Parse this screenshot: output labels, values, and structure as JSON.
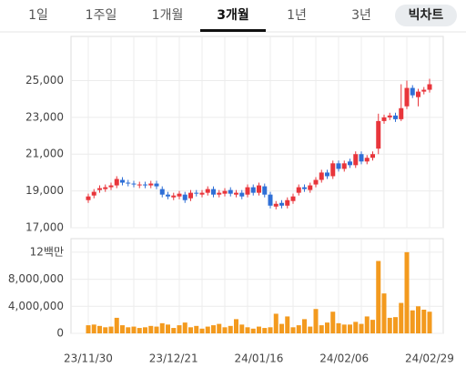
{
  "tabs": [
    "1일",
    "1주일",
    "1개월",
    "3개월",
    "1년",
    "3년"
  ],
  "active_tab": 3,
  "button": "빅차트",
  "chart_data": [
    {
      "type": "candlestick",
      "up_color": "#e8353b",
      "down_color": "#2f6fd6",
      "grid": true,
      "categories": [
        "23/11/30",
        null,
        null,
        null,
        null,
        null,
        null,
        null,
        null,
        null,
        null,
        null,
        null,
        null,
        null,
        "23/12/21",
        null,
        null,
        null,
        null,
        null,
        null,
        null,
        null,
        null,
        null,
        null,
        null,
        null,
        null,
        "24/01/16",
        null,
        null,
        null,
        null,
        null,
        null,
        null,
        null,
        null,
        null,
        null,
        null,
        null,
        null,
        "24/02/06",
        null,
        null,
        null,
        null,
        null,
        null,
        null,
        null,
        null,
        null,
        null,
        null,
        null,
        null,
        "24/02/29"
      ],
      "open": [
        18500,
        18750,
        19050,
        19100,
        19200,
        19300,
        19600,
        19450,
        19400,
        19300,
        19350,
        19300,
        19400,
        19100,
        18800,
        18650,
        18700,
        18800,
        18600,
        18900,
        18800,
        18900,
        19100,
        18800,
        18850,
        19050,
        18800,
        18900,
        18800,
        19200,
        18900,
        19250,
        18800,
        18150,
        18350,
        18200,
        18450,
        18900,
        19200,
        19050,
        19350,
        19600,
        20000,
        19800,
        20500,
        20200,
        20600,
        20400,
        21000,
        20600,
        20800,
        21300,
        22800,
        23000,
        23100,
        22900,
        23600,
        24600,
        24100,
        24400,
        24500
      ],
      "high": [
        18850,
        19100,
        19300,
        19350,
        19450,
        19800,
        19750,
        19600,
        19550,
        19500,
        19500,
        19550,
        19550,
        19250,
        18950,
        18900,
        19000,
        18950,
        19050,
        19050,
        19050,
        19250,
        19250,
        19050,
        19150,
        19200,
        19050,
        19050,
        19350,
        19350,
        19450,
        19400,
        18950,
        18450,
        18500,
        18650,
        18850,
        19350,
        19350,
        19450,
        19750,
        20150,
        20150,
        20650,
        20650,
        20650,
        20750,
        21150,
        21150,
        20950,
        21150,
        23200,
        23150,
        23250,
        23250,
        24800,
        25000,
        24750,
        24550,
        24650,
        25100
      ],
      "low": [
        18350,
        18600,
        18900,
        18950,
        19050,
        19150,
        19300,
        19250,
        19200,
        19150,
        19150,
        19150,
        19100,
        18650,
        18550,
        18500,
        18550,
        18350,
        18450,
        18700,
        18650,
        18750,
        18650,
        18650,
        18700,
        18700,
        18650,
        18550,
        18650,
        18750,
        18750,
        18650,
        18050,
        18000,
        18050,
        18050,
        18300,
        18750,
        18950,
        18900,
        19200,
        19450,
        19650,
        19650,
        20050,
        20050,
        20250,
        20250,
        20450,
        20450,
        20650,
        21000,
        22650,
        22850,
        22750,
        22800,
        23450,
        24050,
        23600,
        24250,
        24350
      ],
      "close": [
        18700,
        18950,
        19150,
        19200,
        19300,
        19650,
        19450,
        19400,
        19350,
        19350,
        19300,
        19400,
        19250,
        18800,
        18700,
        18750,
        18850,
        18500,
        18900,
        18850,
        18900,
        19100,
        18800,
        18900,
        19000,
        18850,
        18900,
        18700,
        19200,
        18900,
        19300,
        18800,
        18200,
        18300,
        18200,
        18500,
        18700,
        19200,
        19100,
        19300,
        19600,
        20000,
        19800,
        20500,
        20200,
        20500,
        20400,
        21000,
        20600,
        20800,
        21000,
        22800,
        23000,
        23100,
        22900,
        23500,
        24600,
        24200,
        24400,
        24500,
        24800
      ],
      "ylim": [
        17000,
        27400
      ],
      "yticks": [
        {
          "value": 17000,
          "label": "17,000"
        },
        {
          "value": 19000,
          "label": "19,000"
        },
        {
          "value": 21000,
          "label": "21,000"
        },
        {
          "value": 23000,
          "label": "23,000"
        },
        {
          "value": 25000,
          "label": "25,000"
        }
      ]
    },
    {
      "type": "bar",
      "color": "#f39a1e",
      "grid": true,
      "values": [
        1200000,
        1300000,
        1100000,
        900000,
        1000000,
        2300000,
        1200000,
        900000,
        1000000,
        800000,
        900000,
        1100000,
        1000000,
        1500000,
        1300000,
        800000,
        1200000,
        1600000,
        900000,
        1100000,
        700000,
        1000000,
        1200000,
        1400000,
        900000,
        1100000,
        2100000,
        1300000,
        900000,
        700000,
        1000000,
        800000,
        900000,
        2900000,
        1400000,
        2500000,
        900000,
        1200000,
        2100000,
        1000000,
        3600000,
        1200000,
        1600000,
        3200000,
        1500000,
        1300000,
        1300000,
        1700000,
        1400000,
        2500000,
        2000000,
        10700000,
        5900000,
        2300000,
        2400000,
        4500000,
        12000000,
        3400000,
        4000000,
        3500000,
        3200000
      ],
      "ylim": [
        0,
        14000000
      ],
      "yticks": [
        0,
        {
          "value": 4000000,
          "label": "4,000,000"
        },
        {
          "value": 8000000,
          "label": "8,000,000"
        },
        {
          "value": 12000000,
          "label": "12백만"
        }
      ]
    }
  ]
}
